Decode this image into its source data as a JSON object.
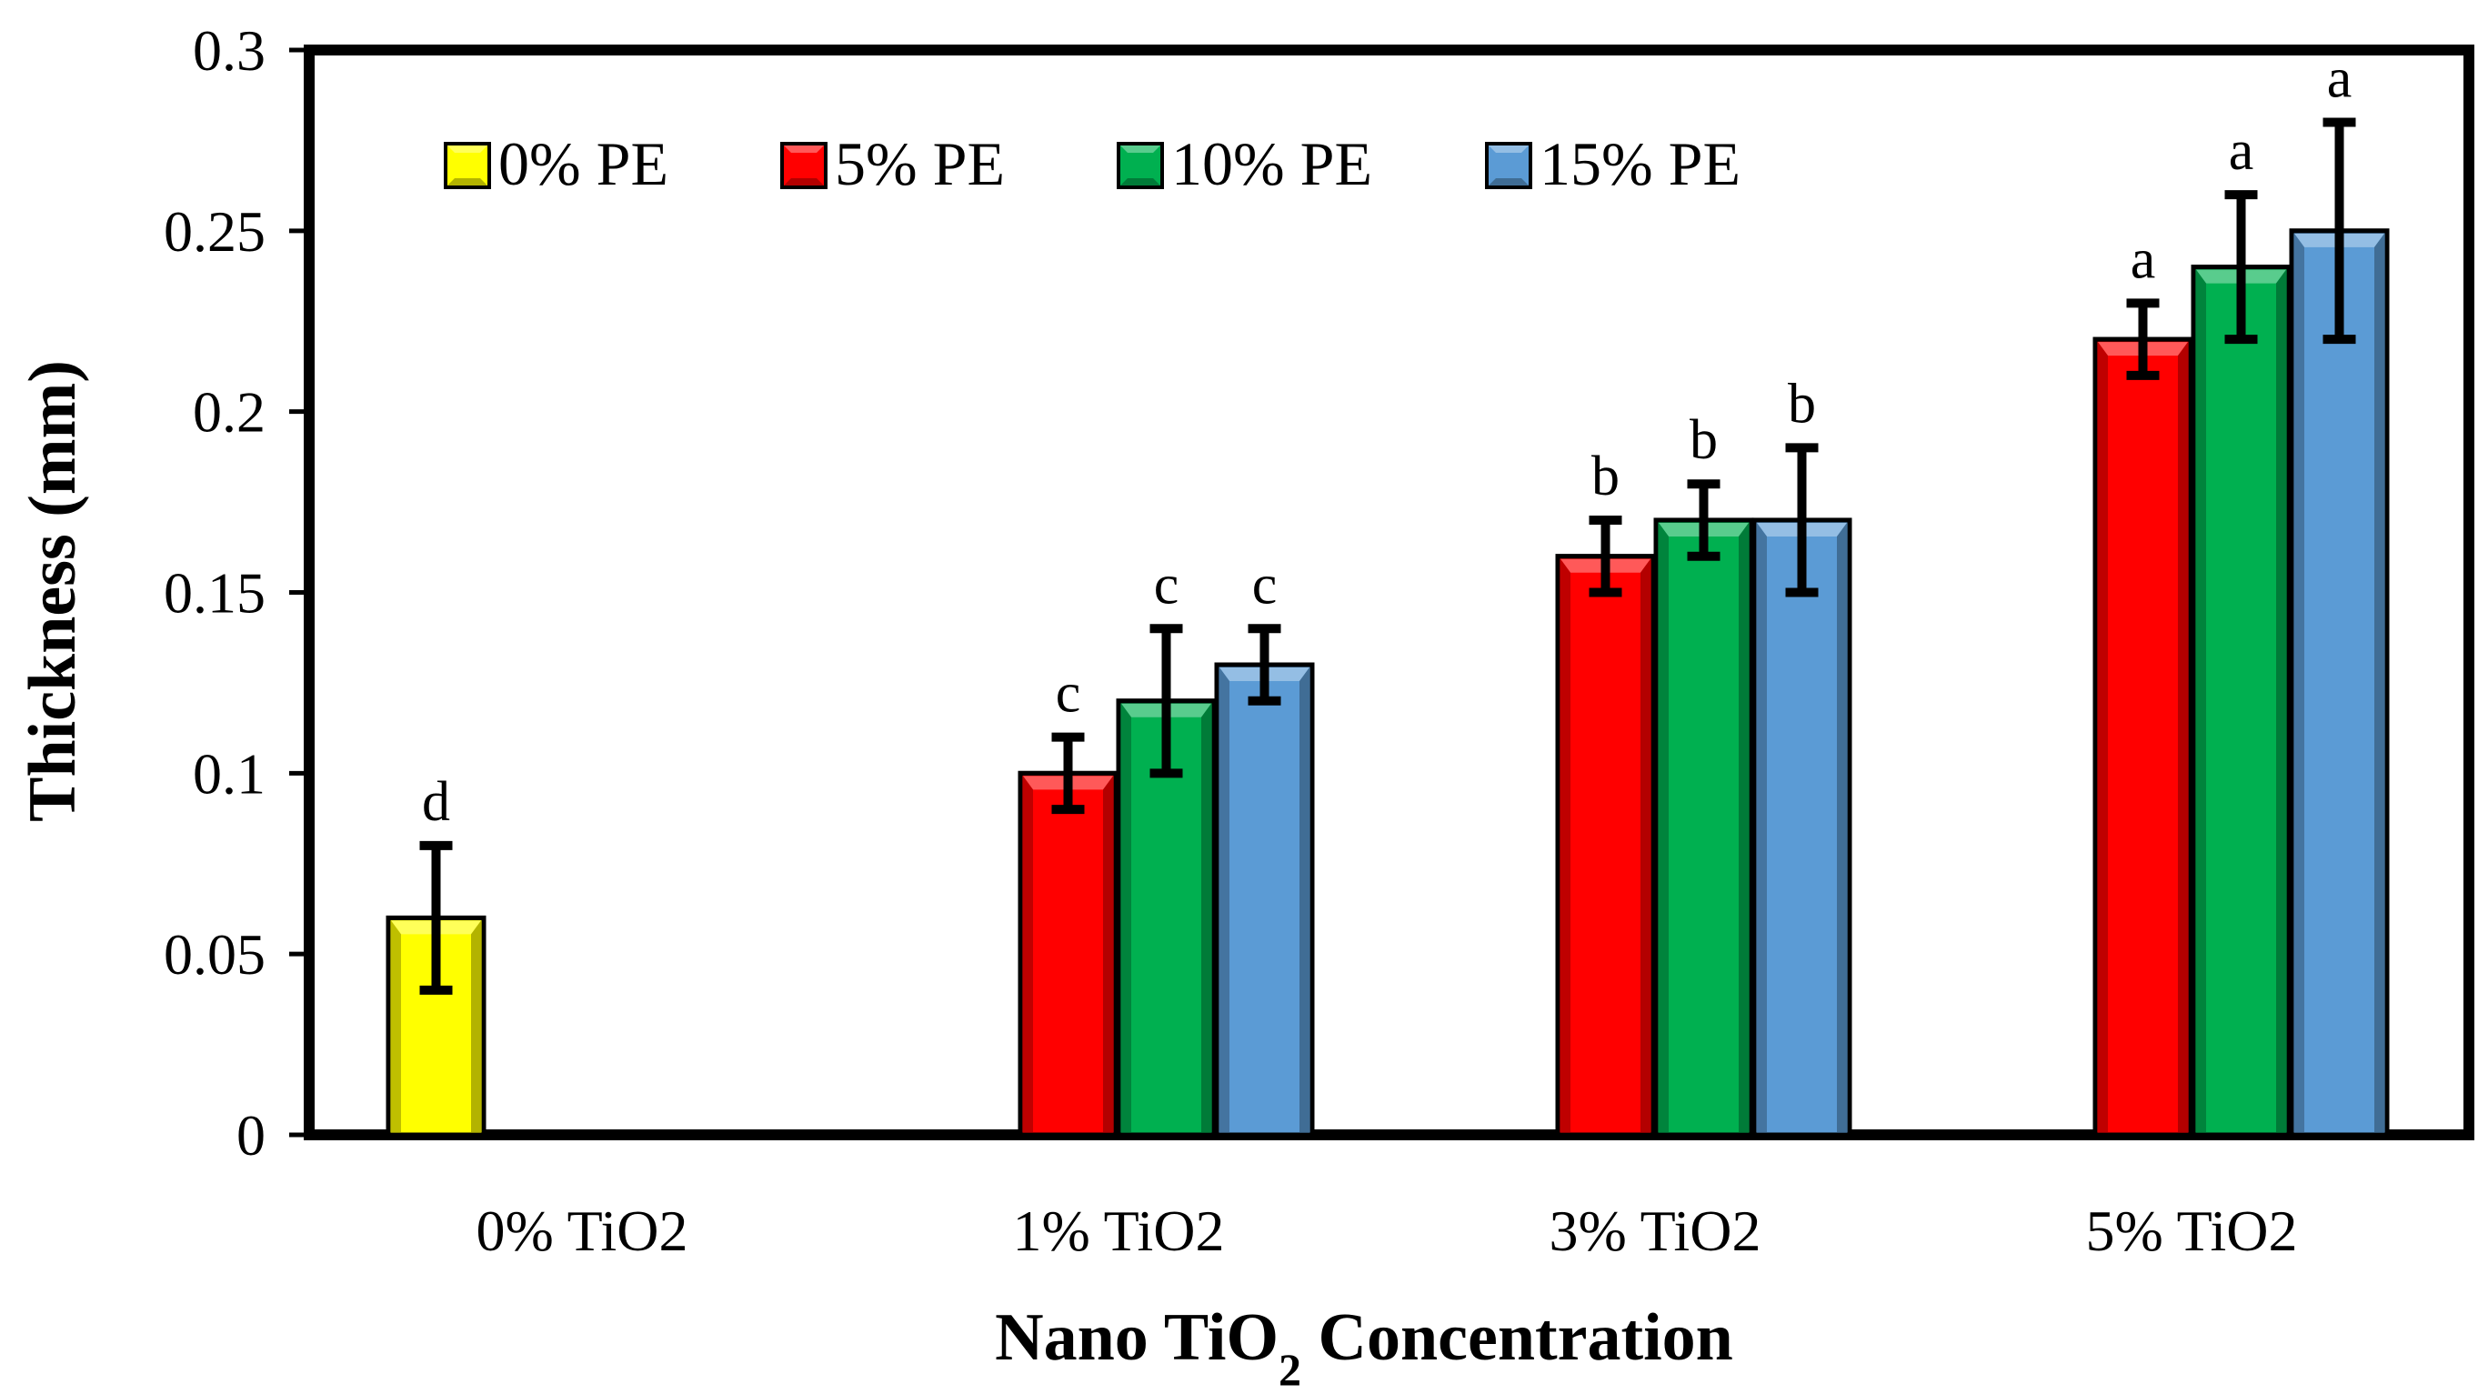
{
  "chart_data": {
    "type": "bar",
    "title": "",
    "xlabel": {
      "main": "Nano TiO",
      "sub": "2",
      "tail": " Concentration"
    },
    "ylabel": "Thickness (mm)",
    "ylim": [
      0,
      0.3
    ],
    "yticks": [
      0,
      0.05,
      0.1,
      0.15,
      0.2,
      0.25,
      0.3
    ],
    "ytick_labels": [
      "0",
      "0.05",
      "0.1",
      "0.15",
      "0.2",
      "0.25",
      "0.3"
    ],
    "categories": [
      "0% TiO2",
      "1% TiO2",
      "3% TiO2",
      "5% TiO2"
    ],
    "legend_position": "top-left",
    "grid": false,
    "series": [
      {
        "name": "0% PE",
        "color": "#FFFF00",
        "values": [
          0.06,
          null,
          null,
          null
        ],
        "errors": [
          0.02,
          null,
          null,
          null
        ],
        "letters": [
          "d",
          null,
          null,
          null
        ]
      },
      {
        "name": "5% PE",
        "color": "#FF0000",
        "values": [
          null,
          0.1,
          0.16,
          0.22
        ],
        "errors": [
          null,
          0.01,
          0.01,
          0.01
        ],
        "letters": [
          null,
          "c",
          "b",
          "a"
        ]
      },
      {
        "name": "10% PE",
        "color": "#00B050",
        "values": [
          null,
          0.12,
          0.17,
          0.24
        ],
        "errors": [
          null,
          0.02,
          0.01,
          0.02
        ],
        "letters": [
          null,
          "c",
          "b",
          "a"
        ]
      },
      {
        "name": "15% PE",
        "color": "#5B9BD5",
        "values": [
          null,
          0.13,
          0.17,
          0.25
        ],
        "errors": [
          null,
          0.01,
          0.02,
          0.03
        ],
        "letters": [
          null,
          "c",
          "b",
          "a"
        ]
      }
    ]
  }
}
